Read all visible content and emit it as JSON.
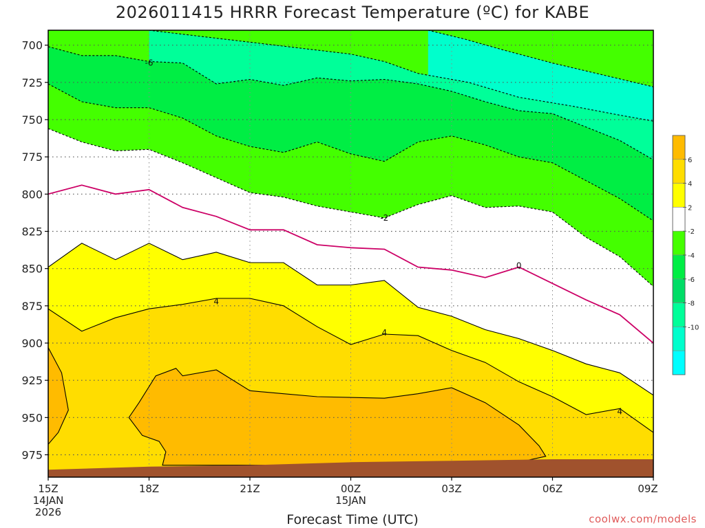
{
  "chart_data": {
    "type": "heatmap",
    "title": "2026011415 HRRR Forecast Temperature (ºC) for KABE",
    "xlabel": "Forecast Time (UTC)",
    "ylabel": "",
    "y_ticks": [
      700,
      725,
      750,
      775,
      800,
      825,
      850,
      875,
      900,
      925,
      950,
      975
    ],
    "ylim": [
      990,
      690
    ],
    "x_ticks": [
      {
        "t": 0,
        "lines": [
          "15Z",
          "14JAN",
          "2026"
        ]
      },
      {
        "t": 3,
        "lines": [
          "18Z"
        ]
      },
      {
        "t": 6,
        "lines": [
          "21Z"
        ]
      },
      {
        "t": 9,
        "lines": [
          "00Z",
          "15JAN"
        ]
      },
      {
        "t": 12,
        "lines": [
          "03Z"
        ]
      },
      {
        "t": 15,
        "lines": [
          "06Z"
        ]
      },
      {
        "t": 18,
        "lines": [
          "09Z"
        ]
      }
    ],
    "xlim": [
      0,
      18
    ],
    "grid": true,
    "contour_labels": [
      {
        "value": "-6",
        "t": 3.0,
        "p": 712
      },
      {
        "value": "-2",
        "t": 10.0,
        "p": 816
      },
      {
        "value": "0",
        "t": 14.0,
        "p": 848
      },
      {
        "value": "4",
        "t": 5.0,
        "p": 872
      },
      {
        "value": "4",
        "t": 10.0,
        "p": 893
      },
      {
        "value": "4",
        "t": 17.0,
        "p": 946
      }
    ],
    "contours": [
      {
        "value": -10,
        "color": "#00ffcc",
        "style": "dashed",
        "points": [
          [
            11.3,
            690
          ],
          [
            12.4,
            696
          ],
          [
            13.5,
            703
          ],
          [
            15,
            712
          ],
          [
            16.5,
            720
          ],
          [
            18,
            728
          ]
        ]
      },
      {
        "value": -8,
        "color": "#00ff99",
        "style": "dashed",
        "points": [
          [
            3,
            690
          ],
          [
            9,
            706
          ],
          [
            10,
            711
          ],
          [
            11,
            719
          ],
          [
            12.5,
            725
          ],
          [
            14,
            735
          ],
          [
            15.6,
            741
          ],
          [
            17,
            747
          ],
          [
            18,
            751
          ]
        ]
      },
      {
        "value": -6,
        "color": "#00ee44",
        "style": "dashed",
        "points": [
          [
            0,
            701
          ],
          [
            1,
            707
          ],
          [
            2,
            707
          ],
          [
            3,
            711
          ],
          [
            4,
            712
          ],
          [
            5,
            726
          ],
          [
            6,
            723
          ],
          [
            7,
            727
          ],
          [
            8,
            722
          ],
          [
            9,
            724
          ],
          [
            10,
            723
          ],
          [
            11,
            726
          ],
          [
            12,
            731
          ],
          [
            13,
            738
          ],
          [
            14,
            744
          ],
          [
            15,
            746
          ],
          [
            16,
            755
          ],
          [
            17,
            764
          ],
          [
            18,
            777
          ]
        ]
      },
      {
        "value": -4,
        "color": "#44ff00",
        "style": "dashed",
        "points": [
          [
            0,
            726
          ],
          [
            1,
            738
          ],
          [
            2,
            742
          ],
          [
            3,
            742
          ],
          [
            4,
            749
          ],
          [
            5,
            761
          ],
          [
            6,
            768
          ],
          [
            7,
            772
          ],
          [
            8,
            765
          ],
          [
            9,
            773
          ],
          [
            10,
            778
          ],
          [
            11,
            765
          ],
          [
            12,
            761
          ],
          [
            13,
            767
          ],
          [
            14,
            775
          ],
          [
            15,
            779
          ],
          [
            16,
            791
          ],
          [
            17,
            803
          ],
          [
            18,
            818
          ]
        ]
      },
      {
        "value": -2,
        "color": "#ffffff",
        "style": "dashed",
        "points": [
          [
            0,
            756
          ],
          [
            1,
            765
          ],
          [
            2,
            771
          ],
          [
            3,
            770
          ],
          [
            4,
            779
          ],
          [
            5,
            789
          ],
          [
            6,
            799
          ],
          [
            7,
            802
          ],
          [
            8,
            808
          ],
          [
            9,
            812
          ],
          [
            10,
            816
          ],
          [
            11,
            807
          ],
          [
            12,
            801
          ],
          [
            13,
            809
          ],
          [
            14,
            808
          ],
          [
            15,
            812
          ],
          [
            16,
            829
          ],
          [
            17,
            842
          ],
          [
            18,
            862
          ]
        ]
      },
      {
        "value": 0,
        "color": "#ffffff",
        "style": "solid",
        "line": "#cc0066",
        "points": [
          [
            0,
            800
          ],
          [
            1,
            794
          ],
          [
            2,
            800
          ],
          [
            3,
            797
          ],
          [
            4,
            809
          ],
          [
            5,
            815
          ],
          [
            6,
            824
          ],
          [
            7,
            824
          ],
          [
            8,
            834
          ],
          [
            9,
            836
          ],
          [
            10,
            837
          ],
          [
            11,
            849
          ],
          [
            12,
            851
          ],
          [
            13,
            856
          ],
          [
            14,
            849
          ],
          [
            15,
            860
          ],
          [
            16,
            871
          ],
          [
            17,
            881
          ],
          [
            18,
            900
          ]
        ]
      },
      {
        "value": 2,
        "color": "#ffff00",
        "style": "solid",
        "points": [
          [
            0,
            849
          ],
          [
            1,
            833
          ],
          [
            2,
            844
          ],
          [
            3,
            833
          ],
          [
            4,
            844
          ],
          [
            5,
            839
          ],
          [
            6,
            846
          ],
          [
            7,
            846
          ],
          [
            8,
            861
          ],
          [
            9,
            861
          ],
          [
            10,
            858
          ],
          [
            11,
            876
          ],
          [
            12,
            882
          ],
          [
            13,
            891
          ],
          [
            14,
            897
          ],
          [
            15,
            905
          ],
          [
            16,
            914
          ],
          [
            17,
            920
          ],
          [
            18,
            935
          ]
        ]
      },
      {
        "value": 4,
        "color": "#ffdd00",
        "style": "solid",
        "points": [
          [
            0,
            877
          ],
          [
            1,
            892
          ],
          [
            2,
            883
          ],
          [
            3,
            877
          ],
          [
            4,
            874
          ],
          [
            5,
            870
          ],
          [
            6,
            870
          ],
          [
            7,
            875
          ],
          [
            8,
            889
          ],
          [
            9,
            901
          ],
          [
            10,
            894
          ],
          [
            11,
            895
          ],
          [
            12,
            905
          ],
          [
            13,
            913
          ],
          [
            14,
            926
          ],
          [
            15,
            936
          ],
          [
            16,
            948
          ],
          [
            17,
            944
          ],
          [
            18,
            960
          ]
        ]
      },
      {
        "value": 6,
        "color": "#ffbb00",
        "style": "solid",
        "closed": true,
        "points": [
          [
            2.7,
            940
          ],
          [
            3.2,
            922
          ],
          [
            3.8,
            917
          ],
          [
            4,
            922
          ],
          [
            5,
            918
          ],
          [
            6,
            932
          ],
          [
            7,
            934
          ],
          [
            8,
            936
          ],
          [
            10,
            937
          ],
          [
            11,
            934
          ],
          [
            12,
            930
          ],
          [
            13,
            940
          ],
          [
            14,
            955
          ],
          [
            14.6,
            969
          ],
          [
            14.8,
            976
          ],
          [
            14.0,
            980
          ],
          [
            12,
            981
          ],
          [
            10,
            982
          ],
          [
            8,
            982
          ],
          [
            6,
            982
          ],
          [
            4,
            982
          ],
          [
            3.4,
            982
          ],
          [
            3.5,
            973
          ],
          [
            3.3,
            966
          ],
          [
            2.8,
            962
          ],
          [
            2.4,
            950
          ]
        ]
      },
      {
        "value": 6,
        "color": "#ffbb00",
        "style": "solid",
        "closed": true,
        "points": [
          [
            0,
            903
          ],
          [
            0.4,
            920
          ],
          [
            0.6,
            945
          ],
          [
            0.3,
            960
          ],
          [
            0,
            968
          ]
        ]
      }
    ],
    "surface_pressure": [
      [
        0,
        985
      ],
      [
        3,
        983
      ],
      [
        6,
        982
      ],
      [
        9,
        980
      ],
      [
        12,
        979
      ],
      [
        15,
        978
      ],
      [
        18,
        978
      ]
    ],
    "colorbar": [
      {
        "label": "",
        "color": "#ffbb00"
      },
      {
        "label": "6",
        "color": "#ffdd00"
      },
      {
        "label": "4",
        "color": "#ffff00"
      },
      {
        "label": "2",
        "color": "#ffffff"
      },
      {
        "label": "-2",
        "color": "#44ff00"
      },
      {
        "label": "-4",
        "color": "#00ee44"
      },
      {
        "label": "-6",
        "color": "#00dd66"
      },
      {
        "label": "-8",
        "color": "#00ff99"
      },
      {
        "label": "-10",
        "color": "#00ffcc"
      },
      {
        "label": "",
        "color": "#00ffff"
      }
    ],
    "colors": {
      "upper_fill": "#44ff00",
      "ground": "#a0522d",
      "frame": "#000000",
      "credit": "#e05a5a"
    }
  },
  "credit": "coolwx.com/models"
}
